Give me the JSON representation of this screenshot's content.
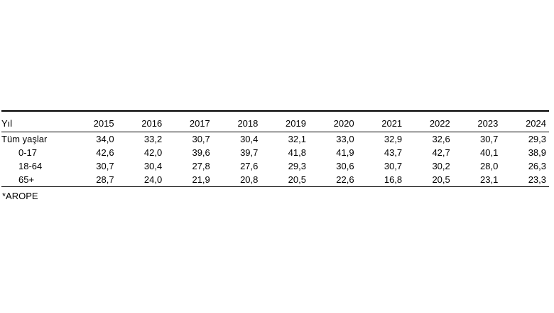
{
  "table": {
    "headers": [
      "Yıl",
      "2015",
      "2016",
      "2017",
      "2018",
      "2019",
      "2020",
      "2021",
      "2022",
      "2023",
      "2024"
    ],
    "rows": [
      {
        "label": "Tüm yaşlar",
        "values": [
          "34,0",
          "33,2",
          "30,7",
          "30,4",
          "32,1",
          "33,0",
          "32,9",
          "32,6",
          "30,7",
          "29,3"
        ]
      },
      {
        "label": "0-17",
        "values": [
          "42,6",
          "42,0",
          "39,6",
          "39,7",
          "41,8",
          "41,9",
          "43,7",
          "42,7",
          "40,1",
          "38,9"
        ]
      },
      {
        "label": "18-64",
        "values": [
          "30,7",
          "30,4",
          "27,8",
          "27,6",
          "29,3",
          "30,6",
          "30,7",
          "30,2",
          "28,0",
          "26,3"
        ]
      },
      {
        "label": "65+",
        "values": [
          "28,7",
          "24,0",
          "21,9",
          "20,8",
          "20,5",
          "22,6",
          "16,8",
          "20,5",
          "23,1",
          "23,3"
        ]
      }
    ]
  },
  "footnote": "*AROPE"
}
